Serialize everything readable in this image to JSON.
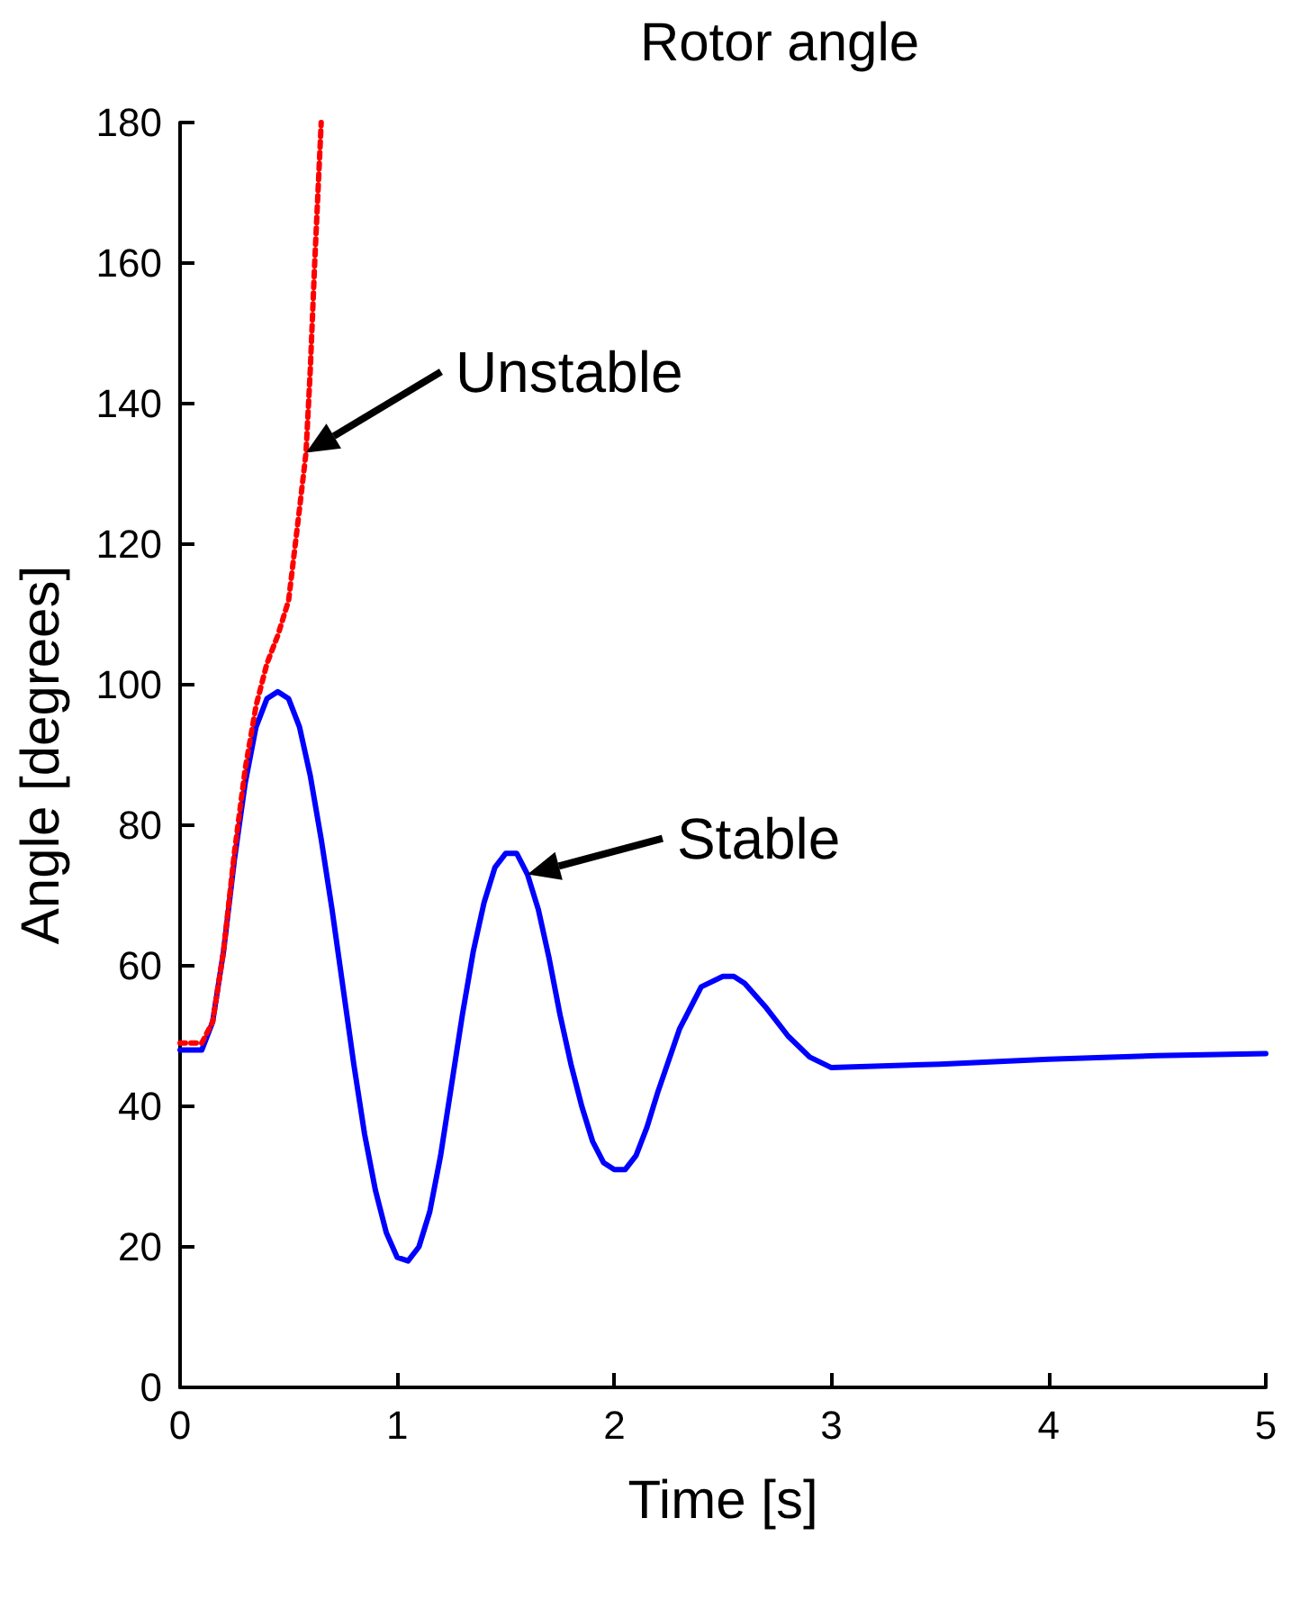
{
  "chart_data": {
    "type": "line",
    "title": "Rotor angle",
    "xlabel": "Time [s]",
    "ylabel": "Angle [degrees]",
    "xlim": [
      0,
      5
    ],
    "xticks": [
      0,
      1,
      2,
      3,
      4,
      5
    ],
    "ylim": [
      0,
      180
    ],
    "yticks": [
      0,
      20,
      40,
      60,
      80,
      100,
      120,
      140,
      160,
      180
    ],
    "grid": false,
    "series": [
      {
        "color": "#0000ff",
        "line_style": "solid",
        "x": [
          0,
          0.1,
          0.15,
          0.2,
          0.25,
          0.3,
          0.35,
          0.4,
          0.45,
          0.5,
          0.55,
          0.6,
          0.65,
          0.7,
          0.75,
          0.8,
          0.85,
          0.9,
          0.95,
          1.0,
          1.05,
          1.1,
          1.15,
          1.2,
          1.25,
          1.3,
          1.35,
          1.4,
          1.45,
          1.5,
          1.55,
          1.6,
          1.65,
          1.7,
          1.75,
          1.8,
          1.85,
          1.9,
          1.95,
          2.0,
          2.05,
          2.1,
          2.15,
          2.2,
          2.3,
          2.4,
          2.5,
          2.55,
          2.6,
          2.7,
          2.8,
          2.9,
          3.0,
          3.5,
          4.0,
          4.5,
          5.0
        ],
        "values": [
          48,
          48,
          52,
          62,
          75,
          86,
          94,
          98,
          99,
          98,
          94,
          87,
          78,
          68,
          57,
          46,
          36,
          28,
          22,
          18.5,
          18,
          20,
          25,
          33,
          43,
          53,
          62,
          69,
          74,
          76,
          76,
          73,
          68,
          61,
          53,
          46,
          40,
          35,
          32,
          31,
          31,
          33,
          37,
          42,
          51,
          57,
          58.5,
          58.5,
          57.5,
          54,
          50,
          47,
          45.5,
          46,
          46.7,
          47.2,
          47.5
        ]
      },
      {
        "color": "#ff0000",
        "line_style": "dotted",
        "x": [
          0,
          0.1,
          0.15,
          0.2,
          0.25,
          0.3,
          0.35,
          0.4,
          0.45,
          0.5,
          0.55,
          0.58,
          0.6,
          0.62,
          0.65
        ],
        "values": [
          49,
          49,
          52,
          62,
          76,
          88,
          97,
          103,
          107,
          112,
          125,
          133,
          145,
          160,
          180
        ]
      }
    ],
    "annotations": [
      {
        "text": "Unstable",
        "x": 0.58,
        "y": 133
      },
      {
        "text": "Stable",
        "x": 1.6,
        "y": 73
      }
    ],
    "marker": "none"
  }
}
